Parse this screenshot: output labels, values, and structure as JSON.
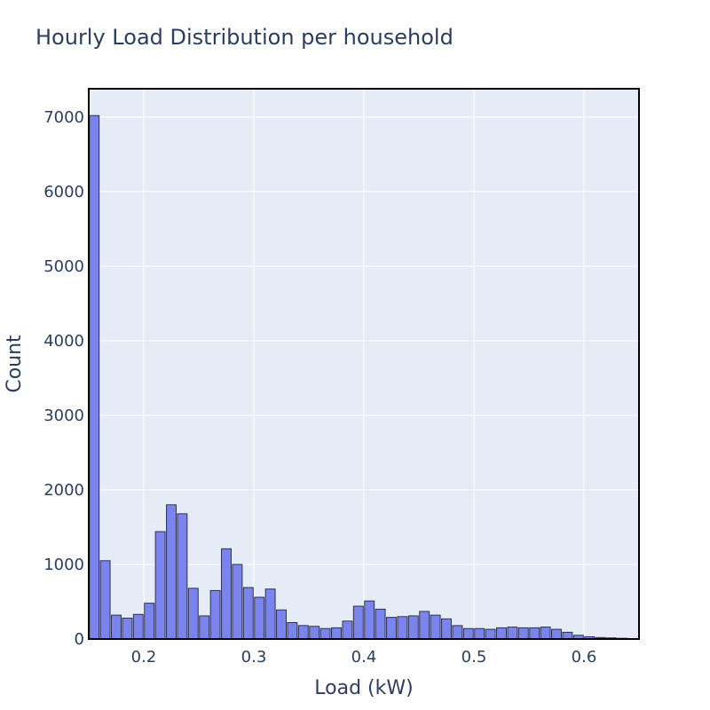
{
  "chart_data": {
    "type": "bar",
    "title": "Hourly Load Distribution per household",
    "xlabel": "Load (kW)",
    "ylabel": "Count",
    "xlim": [
      0.15,
      0.65
    ],
    "ylim": [
      0,
      7380
    ],
    "bin_width": 0.01,
    "bins_start": [
      0.15,
      0.16,
      0.17,
      0.18,
      0.19,
      0.2,
      0.21,
      0.22,
      0.23,
      0.24,
      0.25,
      0.26,
      0.27,
      0.28,
      0.29,
      0.3,
      0.31,
      0.32,
      0.33,
      0.34,
      0.35,
      0.36,
      0.37,
      0.38,
      0.39,
      0.4,
      0.41,
      0.42,
      0.43,
      0.44,
      0.45,
      0.46,
      0.47,
      0.48,
      0.49,
      0.5,
      0.51,
      0.52,
      0.53,
      0.54,
      0.55,
      0.56,
      0.57,
      0.58,
      0.59,
      0.6,
      0.61,
      0.62,
      0.63,
      0.64
    ],
    "values": [
      7020,
      1050,
      320,
      280,
      330,
      480,
      1440,
      1800,
      1680,
      680,
      310,
      650,
      1210,
      1000,
      690,
      560,
      670,
      390,
      220,
      180,
      170,
      140,
      150,
      240,
      440,
      510,
      400,
      290,
      300,
      310,
      370,
      320,
      270,
      180,
      140,
      140,
      130,
      150,
      160,
      150,
      150,
      160,
      130,
      90,
      50,
      30,
      20,
      15,
      10,
      5
    ],
    "x_ticks": [
      {
        "value": 0.2,
        "label": "0.2"
      },
      {
        "value": 0.3,
        "label": "0.3"
      },
      {
        "value": 0.4,
        "label": "0.4"
      },
      {
        "value": 0.5,
        "label": "0.5"
      },
      {
        "value": 0.6,
        "label": "0.6"
      }
    ],
    "y_ticks": [
      {
        "value": 0,
        "label": "0"
      },
      {
        "value": 1000,
        "label": "1000"
      },
      {
        "value": 2000,
        "label": "2000"
      },
      {
        "value": 3000,
        "label": "3000"
      },
      {
        "value": 4000,
        "label": "4000"
      },
      {
        "value": 5000,
        "label": "5000"
      },
      {
        "value": 6000,
        "label": "6000"
      },
      {
        "value": 7000,
        "label": "7000"
      }
    ],
    "grid": true,
    "legend": false,
    "colors": {
      "bar_fill": "#7b83ec",
      "bar_stroke": "#2f3348",
      "plot_background": "#e5ecf6",
      "gridline": "#ffffff",
      "text": "#2a3f5f",
      "frame": "#000000"
    }
  }
}
